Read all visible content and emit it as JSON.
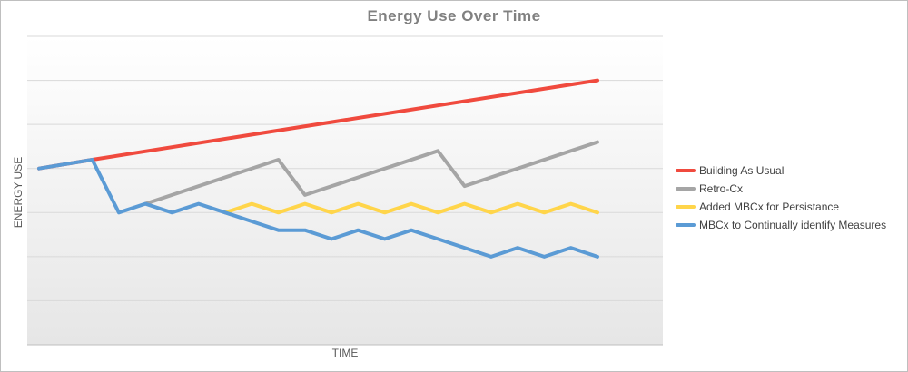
{
  "chart_data": {
    "type": "line",
    "title": "Energy Use Over Time",
    "xlabel": "TIME",
    "ylabel": "ENERGY USE",
    "x": [
      0,
      1,
      2,
      3,
      4,
      5,
      6,
      7,
      8,
      9,
      10,
      11,
      12,
      13,
      14,
      15,
      16,
      17,
      18,
      19,
      20,
      21
    ],
    "ylim": [
      0,
      7
    ],
    "grid": true,
    "legend_position": "right",
    "series": [
      {
        "name": "Building As Usual",
        "color": "#f04a3e",
        "x": [
          0,
          2,
          21
        ],
        "values": [
          4.0,
          4.2,
          6.0
        ]
      },
      {
        "name": "Retro-Cx",
        "color": "#a5a5a5",
        "x": [
          4,
          9,
          10,
          15,
          16,
          21
        ],
        "values": [
          3.2,
          4.2,
          3.4,
          4.4,
          3.6,
          4.6
        ]
      },
      {
        "name": "Added MBCx for Persistance",
        "color": "#ffd54a",
        "x": [
          7,
          8,
          9,
          10,
          11,
          12,
          13,
          14,
          15,
          16,
          17,
          18,
          19,
          20,
          21
        ],
        "values": [
          3.0,
          3.2,
          3.0,
          3.2,
          3.0,
          3.2,
          3.0,
          3.2,
          3.0,
          3.2,
          3.0,
          3.2,
          3.0,
          3.2,
          3.0
        ]
      },
      {
        "name": "MBCx to Continually identify Measures",
        "color": "#5b9bd5",
        "x": [
          0,
          2,
          3,
          4,
          5,
          6,
          7,
          8,
          9,
          10,
          11,
          12,
          13,
          14,
          15,
          16,
          17,
          18,
          19,
          20,
          21
        ],
        "values": [
          4.0,
          4.2,
          3.0,
          3.2,
          3.0,
          3.2,
          3.0,
          2.8,
          2.6,
          2.6,
          2.4,
          2.6,
          2.4,
          2.6,
          2.4,
          2.2,
          2.0,
          2.2,
          2.0,
          2.2,
          2.0
        ]
      }
    ]
  }
}
